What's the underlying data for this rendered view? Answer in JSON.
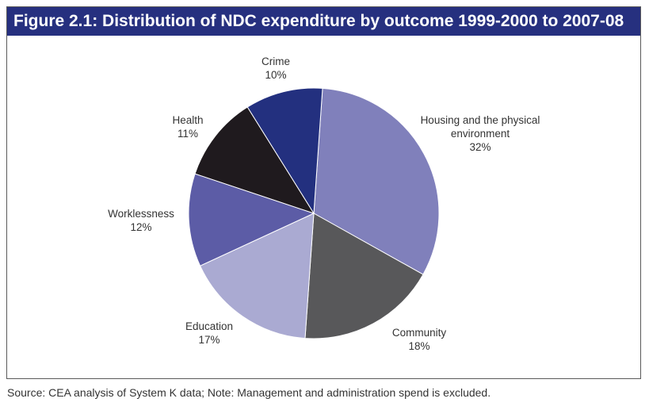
{
  "chart_data": {
    "type": "pie",
    "title": "Figure 2.1: Distribution of NDC expenditure by outcome 1999-2000 to 2007-08",
    "start_angle_deg": 4,
    "direction": "clockwise",
    "slices": [
      {
        "label_lines": [
          "Housing and the physical",
          "environment"
        ],
        "pct_label": "32%",
        "value": 32,
        "color": "#8080bb"
      },
      {
        "label_lines": [
          "Community"
        ],
        "pct_label": "18%",
        "value": 18,
        "color": "#58585a"
      },
      {
        "label_lines": [
          "Education"
        ],
        "pct_label": "17%",
        "value": 17,
        "color": "#aaaad2"
      },
      {
        "label_lines": [
          "Worklessness"
        ],
        "pct_label": "12%",
        "value": 12,
        "color": "#5c5ca6"
      },
      {
        "label_lines": [
          "Health"
        ],
        "pct_label": "11%",
        "value": 11,
        "color": "#1f1a1e"
      },
      {
        "label_lines": [
          "Crime"
        ],
        "pct_label": "10%",
        "value": 10,
        "color": "#23307f"
      }
    ]
  },
  "source_note": "Source: CEA analysis of System K data; Note: Management and administration spend is excluded."
}
